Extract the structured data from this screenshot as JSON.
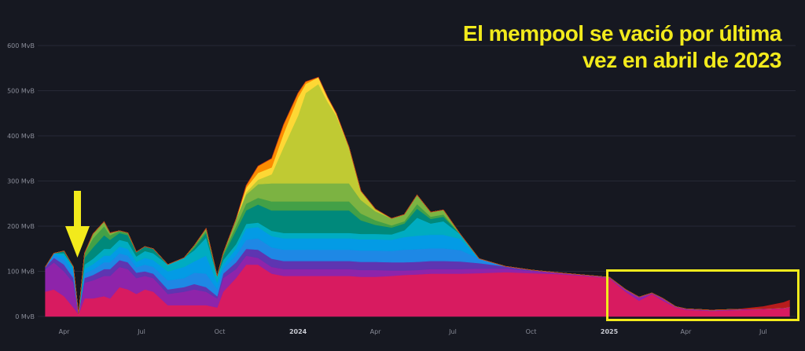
{
  "annotation": {
    "line1": "El mempool se vació por última",
    "line2": "vez en abril de 2023"
  },
  "colors": {
    "background": "#161821",
    "annotation": "#f2ea1c",
    "arrow": "#f2ea1c",
    "highlight_box": "#f2ea1c"
  },
  "icons": {
    "arrow": "down-arrow-icon"
  },
  "chart_data": {
    "type": "area",
    "stacked": true,
    "title": "",
    "xlabel": "",
    "ylabel": "",
    "unit": "MvB",
    "ylim": [
      0,
      600
    ],
    "grid": true,
    "y_ticks": [
      {
        "value": 0,
        "label": "0 MvB"
      },
      {
        "value": 100,
        "label": "100 MvB"
      },
      {
        "value": 200,
        "label": "200 MvB"
      },
      {
        "value": 300,
        "label": "300 MvB"
      },
      {
        "value": 400,
        "label": "400 MvB"
      },
      {
        "value": 500,
        "label": "500 MvB"
      },
      {
        "value": 600,
        "label": "600 MvB"
      }
    ],
    "x_ticks": [
      {
        "date": "2023-04-01",
        "label": "Apr",
        "bold": false
      },
      {
        "date": "2023-07-01",
        "label": "Jul",
        "bold": false
      },
      {
        "date": "2023-10-01",
        "label": "Oct",
        "bold": false
      },
      {
        "date": "2024-01-01",
        "label": "2024",
        "bold": true
      },
      {
        "date": "2024-04-01",
        "label": "Apr",
        "bold": false
      },
      {
        "date": "2024-07-01",
        "label": "Jul",
        "bold": false
      },
      {
        "date": "2024-10-01",
        "label": "Oct",
        "bold": false
      },
      {
        "date": "2025-01-01",
        "label": "2025",
        "bold": true
      },
      {
        "date": "2025-04-01",
        "label": "Apr",
        "bold": false
      },
      {
        "date": "2025-07-01",
        "label": "Jul",
        "bold": false
      }
    ],
    "x": [
      "2023-03-10",
      "2023-03-20",
      "2023-04-01",
      "2023-04-12",
      "2023-04-18",
      "2023-04-25",
      "2023-05-05",
      "2023-05-18",
      "2023-05-25",
      "2023-06-05",
      "2023-06-15",
      "2023-06-25",
      "2023-07-05",
      "2023-07-15",
      "2023-08-01",
      "2023-08-20",
      "2023-09-01",
      "2023-09-15",
      "2023-09-28",
      "2023-10-05",
      "2023-10-20",
      "2023-11-01",
      "2023-11-15",
      "2023-12-01",
      "2023-12-15",
      "2024-01-01",
      "2024-01-10",
      "2024-01-25",
      "2024-02-05",
      "2024-02-15",
      "2024-03-01",
      "2024-03-15",
      "2024-04-01",
      "2024-04-20",
      "2024-05-05",
      "2024-05-20",
      "2024-06-05",
      "2024-06-20",
      "2024-07-10",
      "2024-08-01",
      "2024-09-01",
      "2024-10-01",
      "2024-11-01",
      "2024-12-01",
      "2025-01-01",
      "2025-01-20",
      "2025-02-05",
      "2025-02-20",
      "2025-03-05",
      "2025-03-20",
      "2025-04-01",
      "2025-05-01",
      "2025-06-01",
      "2025-07-01",
      "2025-07-25",
      "2025-08-01"
    ],
    "series": [
      {
        "color": "#d81b60",
        "values": [
          55,
          60,
          45,
          20,
          5,
          40,
          40,
          45,
          40,
          65,
          60,
          50,
          60,
          55,
          25,
          25,
          25,
          25,
          20,
          55,
          85,
          115,
          115,
          95,
          90,
          90,
          90,
          90,
          90,
          90,
          90,
          88,
          88,
          90,
          92,
          93,
          95,
          95,
          95,
          96,
          98,
          96,
          94,
          90,
          85,
          55,
          35,
          50,
          35,
          20,
          15,
          12,
          14,
          16,
          18,
          20
        ]
      },
      {
        "color": "#8e24aa",
        "values": [
          50,
          60,
          55,
          55,
          0,
          35,
          40,
          45,
          50,
          45,
          45,
          35,
          30,
          30,
          25,
          30,
          35,
          30,
          20,
          30,
          20,
          20,
          15,
          15,
          15,
          15,
          15,
          15,
          15,
          15,
          15,
          15,
          15,
          12,
          10,
          10,
          10,
          10,
          10,
          10,
          8,
          5,
          3,
          2,
          2,
          5,
          8,
          2,
          5,
          2,
          2,
          2,
          2,
          1,
          1,
          1
        ]
      },
      {
        "color": "#5e35b1",
        "values": [
          5,
          10,
          15,
          10,
          0,
          10,
          12,
          15,
          15,
          15,
          15,
          12,
          10,
          10,
          10,
          10,
          12,
          10,
          5,
          10,
          15,
          15,
          18,
          18,
          18,
          18,
          18,
          18,
          18,
          18,
          18,
          18,
          18,
          18,
          18,
          18,
          18,
          18,
          17,
          12,
          5,
          2,
          0,
          0,
          0,
          0,
          0,
          0,
          0,
          0,
          0,
          0,
          0,
          0,
          0,
          0
        ]
      },
      {
        "color": "#1e88e5",
        "values": [
          0,
          5,
          10,
          10,
          0,
          10,
          12,
          15,
          15,
          15,
          15,
          12,
          15,
          15,
          20,
          20,
          25,
          30,
          15,
          10,
          15,
          20,
          25,
          25,
          25,
          25,
          25,
          25,
          25,
          25,
          25,
          25,
          25,
          25,
          28,
          28,
          28,
          28,
          25,
          10,
          0,
          0,
          0,
          0,
          0,
          0,
          0,
          0,
          0,
          0,
          0,
          0,
          0,
          0,
          0,
          0
        ]
      },
      {
        "color": "#039be5",
        "values": [
          0,
          5,
          10,
          10,
          0,
          10,
          12,
          15,
          15,
          15,
          15,
          12,
          15,
          15,
          20,
          25,
          25,
          40,
          15,
          10,
          15,
          25,
          25,
          25,
          25,
          25,
          25,
          25,
          25,
          25,
          25,
          25,
          25,
          25,
          28,
          30,
          30,
          30,
          25,
          0,
          0,
          0,
          0,
          0,
          0,
          0,
          0,
          0,
          0,
          0,
          0,
          0,
          0,
          0,
          0,
          0
        ]
      },
      {
        "color": "#00acc1",
        "values": [
          0,
          0,
          5,
          5,
          0,
          10,
          12,
          15,
          15,
          15,
          15,
          12,
          15,
          15,
          15,
          20,
          25,
          40,
          15,
          10,
          10,
          10,
          10,
          12,
          12,
          12,
          12,
          12,
          12,
          12,
          12,
          12,
          12,
          12,
          15,
          40,
          25,
          30,
          10,
          0,
          0,
          0,
          0,
          0,
          0,
          0,
          0,
          0,
          0,
          0,
          0,
          0,
          0,
          0,
          0,
          0
        ]
      },
      {
        "color": "#00897b",
        "values": [
          0,
          0,
          5,
          0,
          0,
          15,
          25,
          30,
          20,
          15,
          15,
          10,
          10,
          10,
          0,
          0,
          5,
          10,
          0,
          10,
          30,
          30,
          40,
          45,
          50,
          50,
          50,
          50,
          50,
          50,
          50,
          30,
          20,
          15,
          15,
          20,
          10,
          10,
          0,
          0,
          0,
          0,
          0,
          0,
          0,
          0,
          0,
          0,
          0,
          0,
          0,
          0,
          0,
          0,
          0,
          0
        ]
      },
      {
        "color": "#43a047",
        "values": [
          0,
          0,
          0,
          0,
          0,
          10,
          20,
          20,
          10,
          5,
          5,
          0,
          0,
          0,
          0,
          0,
          5,
          5,
          0,
          5,
          10,
          15,
          15,
          20,
          20,
          20,
          20,
          20,
          20,
          20,
          20,
          15,
          10,
          5,
          5,
          10,
          5,
          5,
          0,
          0,
          0,
          0,
          0,
          0,
          0,
          0,
          0,
          0,
          0,
          0,
          0,
          0,
          0,
          0,
          0,
          0
        ]
      },
      {
        "color": "#7cb342",
        "values": [
          0,
          0,
          0,
          0,
          0,
          0,
          10,
          10,
          5,
          0,
          0,
          0,
          0,
          0,
          0,
          0,
          0,
          5,
          0,
          0,
          15,
          20,
          30,
          40,
          40,
          40,
          40,
          40,
          40,
          40,
          40,
          30,
          20,
          15,
          15,
          20,
          10,
          10,
          0,
          0,
          0,
          0,
          0,
          0,
          0,
          0,
          0,
          0,
          0,
          0,
          0,
          0,
          0,
          0,
          0,
          0
        ]
      },
      {
        "color": "#c0ca33",
        "values": [
          0,
          0,
          0,
          0,
          0,
          0,
          0,
          0,
          0,
          0,
          0,
          0,
          0,
          0,
          0,
          0,
          0,
          0,
          0,
          0,
          0,
          5,
          10,
          20,
          80,
          150,
          200,
          220,
          180,
          150,
          80,
          20,
          5,
          0,
          0,
          0,
          0,
          0,
          0,
          0,
          0,
          0,
          0,
          0,
          0,
          0,
          0,
          0,
          0,
          0,
          0,
          0,
          0,
          0,
          0,
          0
        ]
      },
      {
        "color": "#fdd835",
        "values": [
          0,
          0,
          0,
          0,
          0,
          0,
          0,
          0,
          0,
          0,
          0,
          0,
          0,
          0,
          0,
          0,
          0,
          0,
          0,
          0,
          0,
          10,
          15,
          15,
          30,
          40,
          20,
          15,
          10,
          5,
          0,
          0,
          0,
          0,
          0,
          0,
          0,
          0,
          0,
          0,
          0,
          0,
          0,
          0,
          0,
          0,
          0,
          0,
          0,
          0,
          0,
          0,
          0,
          0,
          0,
          0
        ]
      },
      {
        "color": "#fb8c00",
        "values": [
          0,
          0,
          0,
          0,
          0,
          0,
          0,
          0,
          0,
          0,
          0,
          0,
          0,
          0,
          0,
          0,
          0,
          0,
          0,
          0,
          0,
          5,
          15,
          20,
          20,
          10,
          5,
          0,
          0,
          0,
          0,
          0,
          0,
          0,
          0,
          0,
          0,
          0,
          0,
          0,
          0,
          0,
          0,
          0,
          0,
          0,
          0,
          0,
          0,
          0,
          0,
          0,
          0,
          0,
          0,
          0
        ]
      },
      {
        "color": "#b71c1c",
        "values": [
          0,
          0,
          0,
          0,
          0,
          0,
          0,
          0,
          0,
          0,
          0,
          0,
          0,
          0,
          0,
          0,
          0,
          0,
          0,
          0,
          0,
          0,
          0,
          0,
          0,
          0,
          0,
          0,
          0,
          0,
          0,
          0,
          0,
          0,
          0,
          0,
          0,
          0,
          0,
          0,
          0,
          0,
          0,
          0,
          0,
          0,
          0,
          0,
          0,
          0,
          0,
          0,
          0,
          5,
          12,
          15
        ]
      }
    ]
  }
}
